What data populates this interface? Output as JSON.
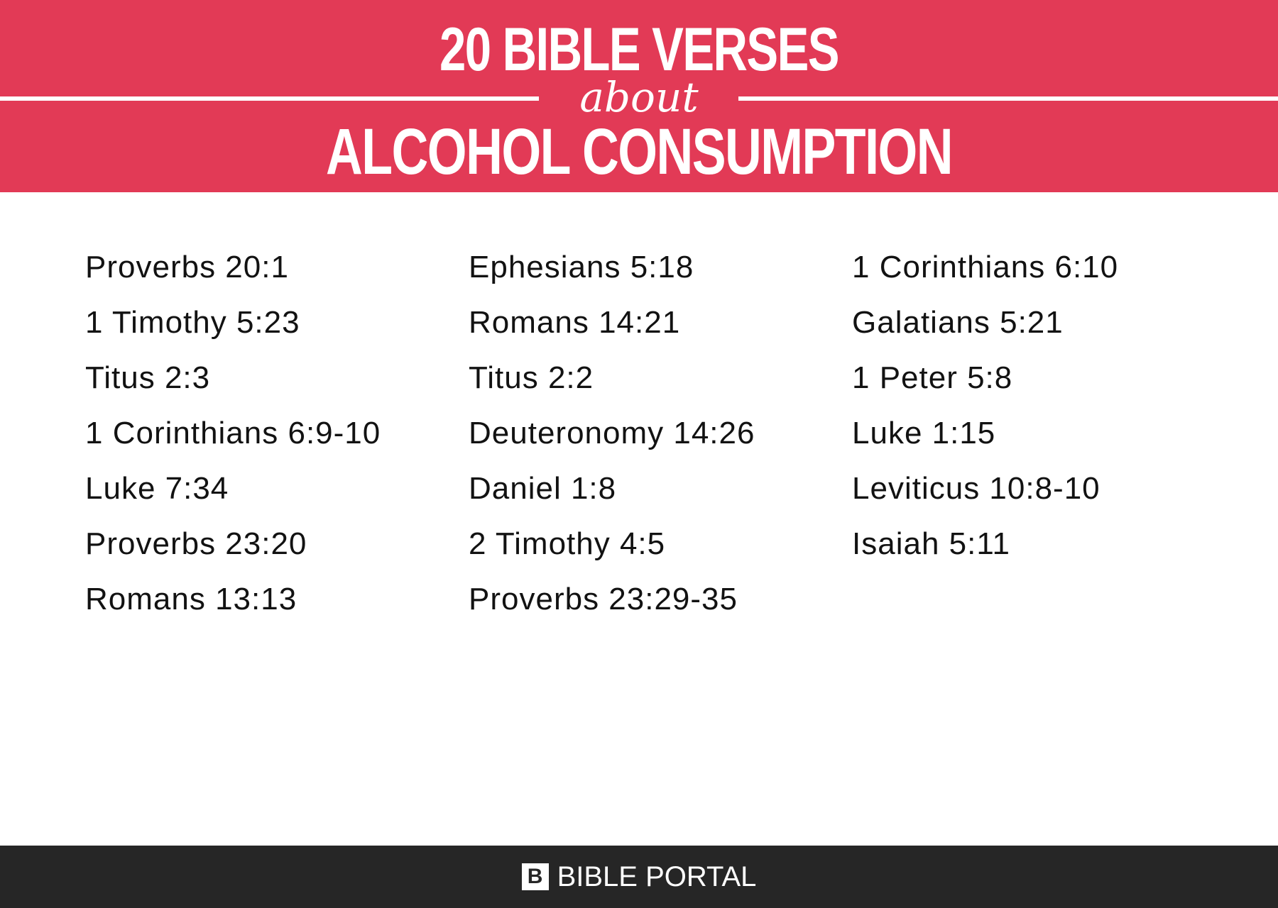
{
  "header": {
    "title_top": "20 BIBLE VERSES",
    "title_middle": "about",
    "title_bottom": "ALCOHOL CONSUMPTION",
    "background_color": "#e23a56",
    "text_color": "#ffffff"
  },
  "verses": {
    "columns": [
      [
        "Proverbs 20:1",
        "1 Timothy 5:23",
        "Titus 2:3",
        "1 Corinthians 6:9-10",
        "Luke 7:34",
        "Proverbs 23:20",
        "Romans 13:13"
      ],
      [
        "Ephesians 5:18",
        "Romans 14:21",
        "Titus 2:2",
        "Deuteronomy 14:26",
        "Daniel 1:8",
        "2 Timothy 4:5",
        "Proverbs 23:29-35"
      ],
      [
        "1 Corinthians 6:10",
        "Galatians 5:21",
        "1 Peter 5:8",
        "Luke 1:15",
        "Leviticus 10:8-10",
        "Isaiah 5:11"
      ]
    ]
  },
  "footer": {
    "logo_letter": "B",
    "logo_icon": "bible-portal-logo-icon",
    "brand_text": "BIBLE PORTAL",
    "background_color": "#262626"
  }
}
